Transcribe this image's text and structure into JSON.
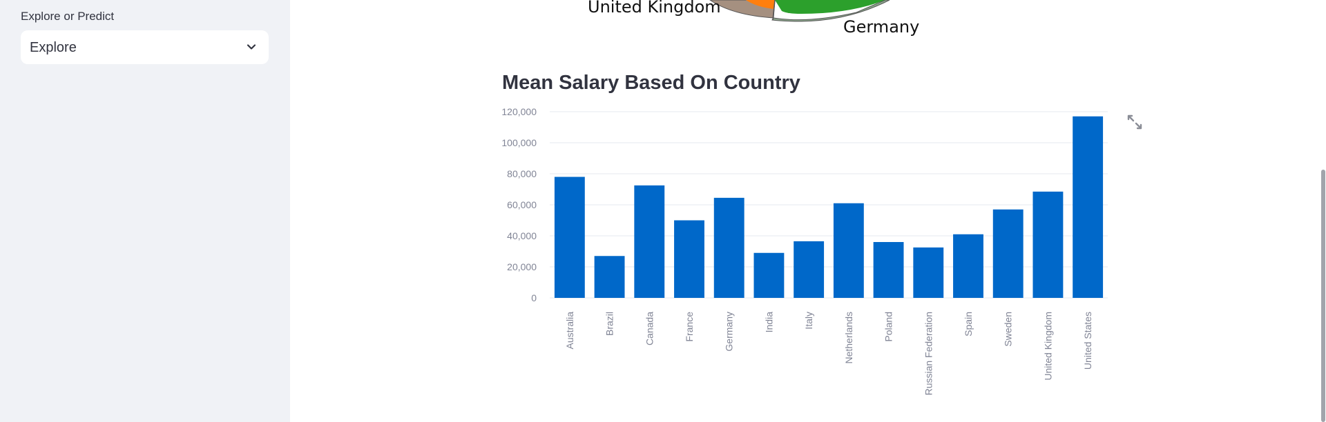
{
  "sidebar": {
    "label": "Explore or Predict",
    "select": {
      "value": "Explore",
      "icon": "chevron-down-icon"
    }
  },
  "pie_labels": {
    "left": "United Kingdom",
    "right": "Germany"
  },
  "colors": {
    "bar": "#0068c9",
    "sidebar_bg": "#f0f2f6",
    "pie_green": "#2ca02c",
    "pie_orange": "#ff7f0e",
    "pie_brown": "#a59080"
  },
  "chart_data": {
    "type": "bar",
    "title": "Mean Salary Based On Country",
    "xlabel": "",
    "ylabel": "",
    "ylim": [
      0,
      120000
    ],
    "yticks": [
      "0",
      "20,000",
      "40,000",
      "60,000",
      "80,000",
      "100,000",
      "120,000"
    ],
    "categories": [
      "Australia",
      "Brazil",
      "Canada",
      "France",
      "Germany",
      "India",
      "Italy",
      "Netherlands",
      "Poland",
      "Russian Federation",
      "Spain",
      "Sweden",
      "United Kingdom",
      "United States"
    ],
    "values": [
      78000,
      27000,
      72500,
      50000,
      64500,
      29000,
      36500,
      61000,
      36000,
      32500,
      41000,
      57000,
      68500,
      117000
    ],
    "grid": true
  }
}
